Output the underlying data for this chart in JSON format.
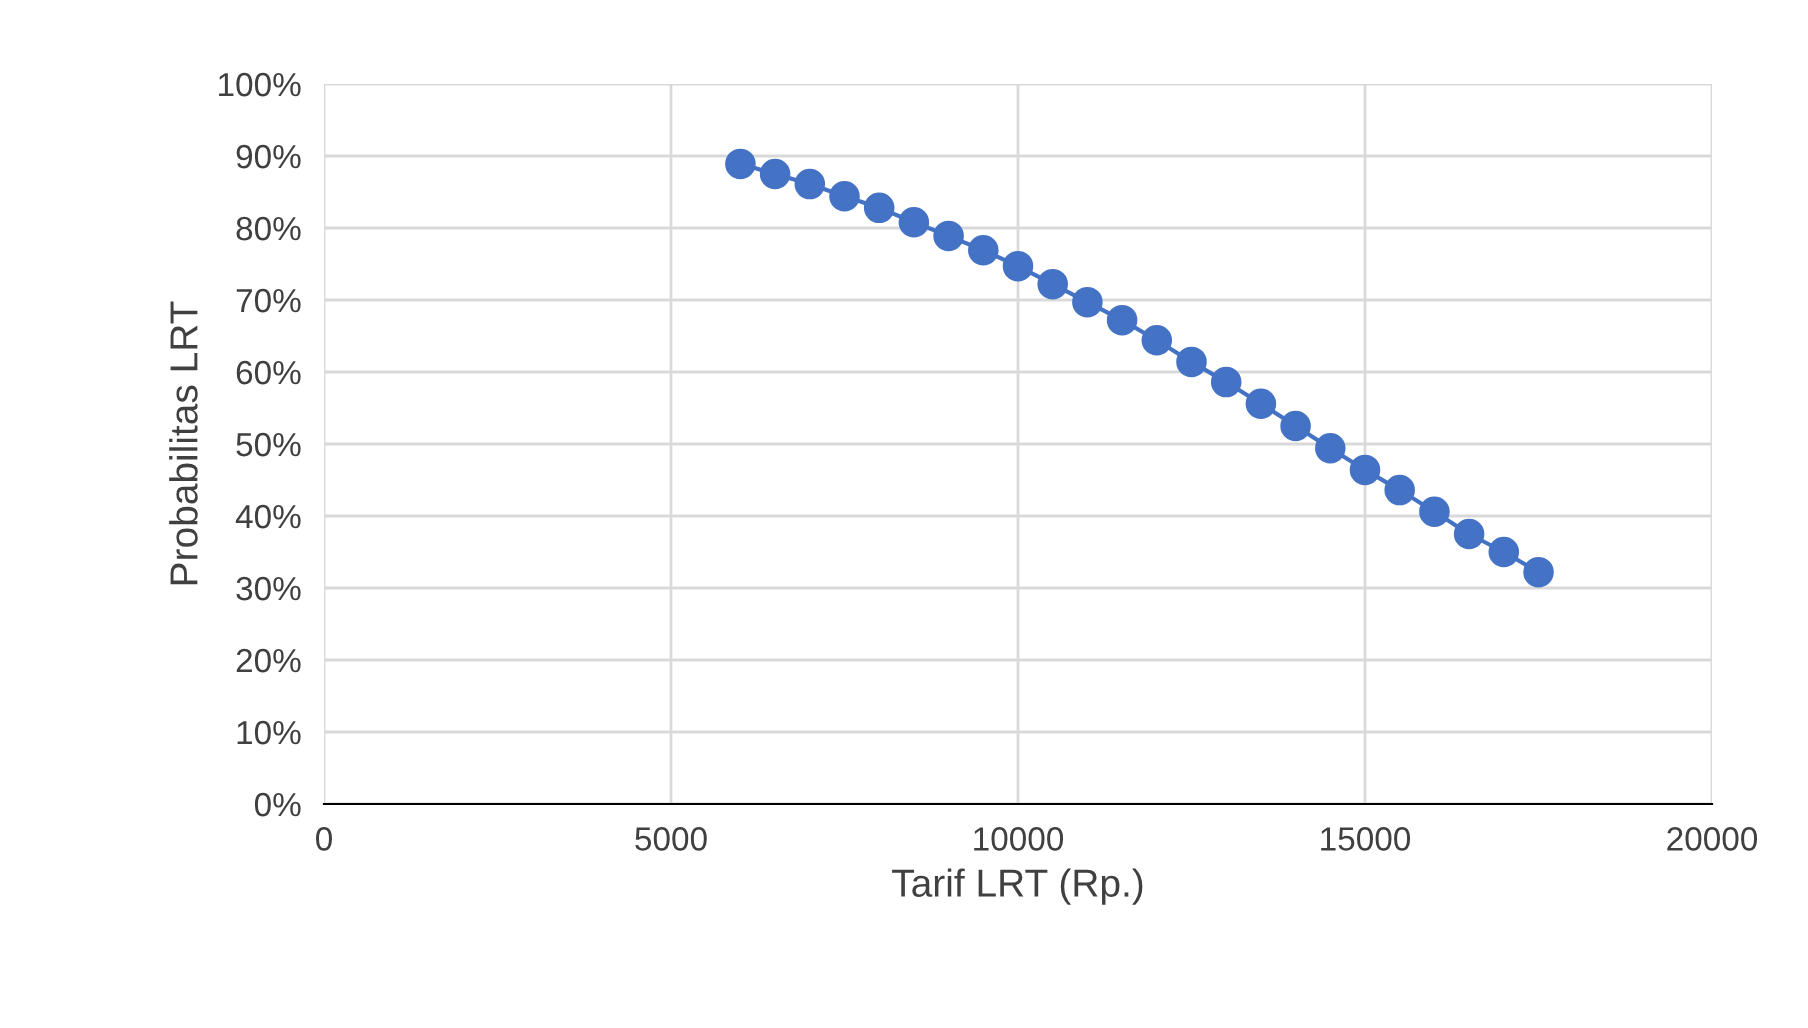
{
  "chart_data": {
    "type": "line",
    "xlabel": "Tarif LRT (Rp.)",
    "ylabel": "Probabilitas LRT",
    "x": [
      6000,
      6500,
      7000,
      7500,
      8000,
      8500,
      9000,
      9500,
      10000,
      10500,
      11000,
      11500,
      12000,
      12500,
      13000,
      13500,
      14000,
      14500,
      15000,
      15500,
      16000,
      16500,
      17000,
      17500
    ],
    "series": [
      {
        "color": "#4472c4",
        "values": [
          88.9,
          87.5,
          86.1,
          84.4,
          82.8,
          80.8,
          78.9,
          76.9,
          74.7,
          72.2,
          69.7,
          67.2,
          64.4,
          61.4,
          58.6,
          55.6,
          52.5,
          49.4,
          46.4,
          43.6,
          40.6,
          37.5,
          35.0,
          32.2
        ]
      }
    ],
    "xlim": [
      0,
      20000
    ],
    "xticks": [
      0,
      5000,
      10000,
      15000,
      20000
    ],
    "ylim": [
      0,
      100
    ],
    "yticks": [
      {
        "value": 0,
        "label": "0%"
      },
      {
        "value": 10,
        "label": "10%"
      },
      {
        "value": 20,
        "label": "20%"
      },
      {
        "value": 30,
        "label": "30%"
      },
      {
        "value": 40,
        "label": "40%"
      },
      {
        "value": 50,
        "label": "50%"
      },
      {
        "value": 60,
        "label": "60%"
      },
      {
        "value": 70,
        "label": "70%"
      },
      {
        "value": 80,
        "label": "80%"
      },
      {
        "value": 90,
        "label": "90%"
      },
      {
        "value": 100,
        "label": "100%"
      }
    ],
    "grid": true,
    "marker": "circle",
    "line_style": "solid",
    "legend": false
  }
}
